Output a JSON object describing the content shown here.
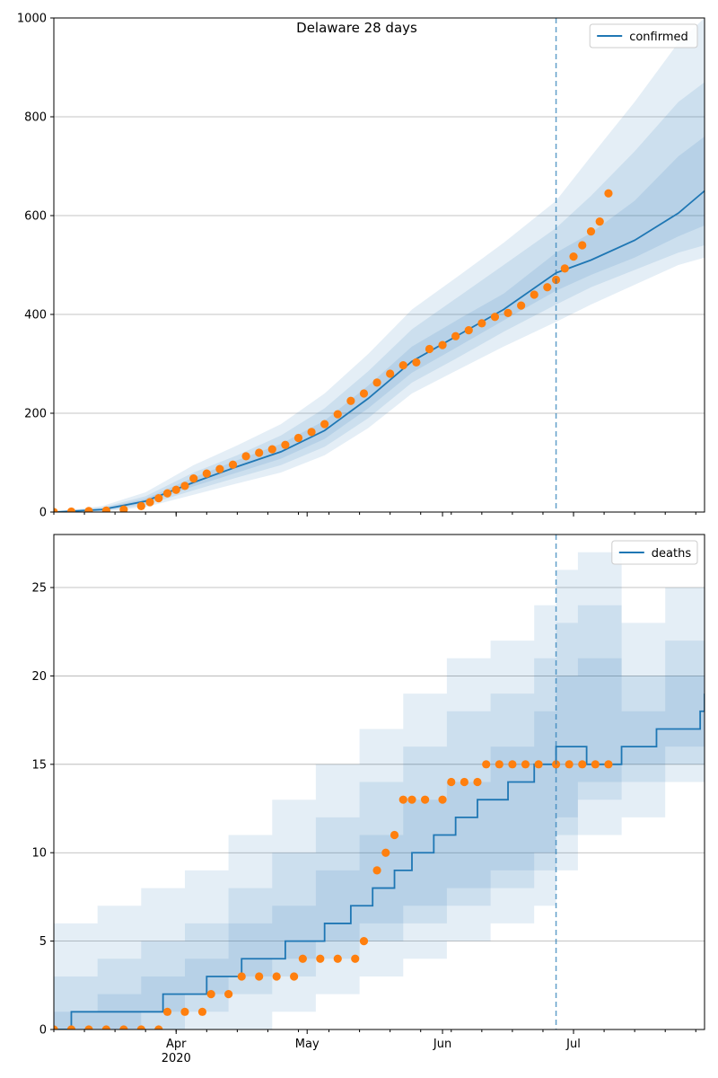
{
  "chart_data": [
    {
      "type": "line",
      "title": "Delaware 28 days",
      "xlabel": "",
      "ylabel": "",
      "x_range": [
        "2020-03-04",
        "2020-07-31"
      ],
      "ylim": [
        0,
        1000
      ],
      "y_ticks": [
        0,
        200,
        400,
        600,
        800,
        1000
      ],
      "x_ticks": [
        {
          "date": "2020-04-01",
          "label": "Apr",
          "sublabel": "2020"
        },
        {
          "date": "2020-05-01",
          "label": "May",
          "sublabel": ""
        },
        {
          "date": "2020-06-01",
          "label": "Jun",
          "sublabel": ""
        },
        {
          "date": "2020-07-01",
          "label": "Jul",
          "sublabel": ""
        }
      ],
      "grid": "y",
      "legend": "top-right",
      "vline_date": "2020-06-27",
      "colors": {
        "line": "#1f77b4",
        "points": "#ff7f0e",
        "band": "#1f77b4"
      },
      "series": [
        {
          "name": "confirmed",
          "kind": "model-line",
          "x": [
            "2020-03-04",
            "2020-03-15",
            "2020-03-25",
            "2020-04-05",
            "2020-04-15",
            "2020-04-25",
            "2020-05-05",
            "2020-05-15",
            "2020-05-25",
            "2020-06-05",
            "2020-06-15",
            "2020-06-27",
            "2020-07-05",
            "2020-07-15",
            "2020-07-25",
            "2020-07-31"
          ],
          "values": [
            0,
            5,
            22,
            60,
            92,
            122,
            165,
            230,
            305,
            360,
            410,
            484,
            510,
            550,
            605,
            650
          ]
        },
        {
          "name": "",
          "kind": "observed-points",
          "x": [
            "2020-03-04",
            "2020-03-08",
            "2020-03-12",
            "2020-03-16",
            "2020-03-20",
            "2020-03-24",
            "2020-03-26",
            "2020-03-28",
            "2020-03-30",
            "2020-04-01",
            "2020-04-03",
            "2020-04-05",
            "2020-04-08",
            "2020-04-11",
            "2020-04-14",
            "2020-04-17",
            "2020-04-20",
            "2020-04-23",
            "2020-04-26",
            "2020-04-29",
            "2020-05-02",
            "2020-05-05",
            "2020-05-08",
            "2020-05-11",
            "2020-05-14",
            "2020-05-17",
            "2020-05-20",
            "2020-05-23",
            "2020-05-26",
            "2020-05-29",
            "2020-06-01",
            "2020-06-04",
            "2020-06-07",
            "2020-06-10",
            "2020-06-13",
            "2020-06-16",
            "2020-06-19",
            "2020-06-22",
            "2020-06-25",
            "2020-06-27",
            "2020-06-29",
            "2020-07-01",
            "2020-07-03",
            "2020-07-05",
            "2020-07-07",
            "2020-07-09"
          ],
          "values": [
            0,
            1,
            2,
            3,
            5,
            12,
            20,
            28,
            38,
            45,
            53,
            68,
            78,
            87,
            96,
            113,
            120,
            127,
            136,
            150,
            162,
            178,
            198,
            225,
            240,
            262,
            280,
            297,
            303,
            330,
            338,
            356,
            368,
            382,
            395,
            403,
            418,
            440,
            455,
            470,
            493,
            517,
            540,
            568,
            588,
            645
          ]
        }
      ],
      "bands": [
        {
          "lower": [
            0,
            1,
            10,
            35,
            58,
            80,
            115,
            170,
            240,
            290,
            335,
            385,
            420,
            460,
            500,
            515
          ],
          "upper": [
            0,
            12,
            40,
            95,
            135,
            178,
            240,
            320,
            410,
            480,
            545,
            630,
            720,
            830,
            950,
            1000
          ]
        },
        {
          "lower": [
            0,
            2,
            14,
            44,
            70,
            95,
            132,
            190,
            262,
            315,
            365,
            420,
            455,
            490,
            525,
            540
          ],
          "upper": [
            0,
            9,
            32,
            80,
            115,
            155,
            210,
            285,
            370,
            438,
            500,
            575,
            640,
            730,
            830,
            870
          ]
        },
        {
          "lower": [
            0,
            3,
            18,
            52,
            80,
            108,
            148,
            210,
            282,
            337,
            388,
            448,
            480,
            515,
            558,
            580
          ],
          "upper": [
            0,
            7,
            27,
            70,
            105,
            138,
            185,
            256,
            335,
            392,
            442,
            525,
            565,
            630,
            720,
            760
          ]
        }
      ]
    },
    {
      "type": "line",
      "title": "",
      "xlabel": "",
      "ylabel": "",
      "x_range": [
        "2020-03-04",
        "2020-07-31"
      ],
      "ylim": [
        0,
        28
      ],
      "y_ticks": [
        0,
        5,
        10,
        15,
        20,
        25
      ],
      "x_ticks": [
        {
          "date": "2020-04-01",
          "label": "Apr",
          "sublabel": "2020"
        },
        {
          "date": "2020-05-01",
          "label": "May",
          "sublabel": ""
        },
        {
          "date": "2020-06-01",
          "label": "Jun",
          "sublabel": ""
        },
        {
          "date": "2020-07-01",
          "label": "Jul",
          "sublabel": ""
        }
      ],
      "grid": "y",
      "legend": "top-right",
      "vline_date": "2020-06-27",
      "colors": {
        "line": "#1f77b4",
        "points": "#ff7f0e",
        "band": "#1f77b4"
      },
      "series": [
        {
          "name": "deaths",
          "kind": "model-step",
          "x": [
            "2020-03-04",
            "2020-03-08",
            "2020-03-29",
            "2020-04-08",
            "2020-04-16",
            "2020-04-26",
            "2020-05-05",
            "2020-05-11",
            "2020-05-16",
            "2020-05-21",
            "2020-05-25",
            "2020-05-30",
            "2020-06-04",
            "2020-06-09",
            "2020-06-16",
            "2020-06-22",
            "2020-06-27",
            "2020-07-04",
            "2020-07-12",
            "2020-07-20",
            "2020-07-30",
            "2020-07-31"
          ],
          "values": [
            0,
            1,
            2,
            3,
            4,
            5,
            6,
            7,
            8,
            9,
            10,
            11,
            12,
            13,
            14,
            15,
            16,
            15,
            16,
            17,
            18,
            19
          ]
        },
        {
          "name": "",
          "kind": "observed-points",
          "x": [
            "2020-03-04",
            "2020-03-08",
            "2020-03-12",
            "2020-03-16",
            "2020-03-20",
            "2020-03-24",
            "2020-03-28",
            "2020-03-30",
            "2020-04-03",
            "2020-04-07",
            "2020-04-09",
            "2020-04-13",
            "2020-04-16",
            "2020-04-20",
            "2020-04-24",
            "2020-04-28",
            "2020-04-30",
            "2020-05-04",
            "2020-05-08",
            "2020-05-12",
            "2020-05-14",
            "2020-05-17",
            "2020-05-19",
            "2020-05-21",
            "2020-05-23",
            "2020-05-25",
            "2020-05-28",
            "2020-06-01",
            "2020-06-03",
            "2020-06-06",
            "2020-06-09",
            "2020-06-11",
            "2020-06-14",
            "2020-06-17",
            "2020-06-20",
            "2020-06-23",
            "2020-06-27",
            "2020-06-30",
            "2020-07-03",
            "2020-07-06",
            "2020-07-09"
          ],
          "values": [
            0,
            0,
            0,
            0,
            0,
            0,
            0,
            1,
            1,
            1,
            2,
            2,
            3,
            3,
            3,
            3,
            4,
            4,
            4,
            4,
            5,
            9,
            10,
            11,
            13,
            13,
            13,
            13,
            14,
            14,
            14,
            15,
            15,
            15,
            15,
            15,
            15,
            15,
            15,
            15,
            15
          ]
        }
      ],
      "bands": [
        {
          "lower": [
            0,
            0,
            0,
            0,
            0,
            1,
            2,
            3,
            4,
            5,
            6,
            7,
            9,
            11,
            12,
            14,
            15
          ],
          "upper": [
            6,
            7,
            8,
            9,
            11,
            13,
            15,
            17,
            19,
            21,
            22,
            24,
            26,
            27,
            23,
            25,
            28
          ]
        },
        {
          "lower": [
            0,
            0,
            0,
            1,
            2,
            3,
            4,
            5,
            6,
            7,
            8,
            9,
            11,
            13,
            14,
            15,
            16
          ],
          "upper": [
            3,
            4,
            5,
            6,
            8,
            10,
            12,
            14,
            16,
            18,
            19,
            21,
            23,
            24,
            20,
            22,
            24
          ]
        },
        {
          "lower": [
            0,
            0,
            1,
            2,
            3,
            4,
            5,
            6,
            7,
            8,
            9,
            10,
            12,
            14,
            15,
            16,
            17
          ],
          "upper": [
            1,
            2,
            3,
            4,
            6,
            7,
            9,
            11,
            13,
            14,
            16,
            18,
            20,
            21,
            18,
            20,
            21
          ]
        }
      ],
      "band_x": [
        "2020-03-04",
        "2020-03-14",
        "2020-03-24",
        "2020-04-03",
        "2020-04-13",
        "2020-04-23",
        "2020-05-03",
        "2020-05-13",
        "2020-05-23",
        "2020-06-02",
        "2020-06-12",
        "2020-06-22",
        "2020-06-27",
        "2020-07-02",
        "2020-07-12",
        "2020-07-22",
        "2020-07-31"
      ]
    }
  ]
}
